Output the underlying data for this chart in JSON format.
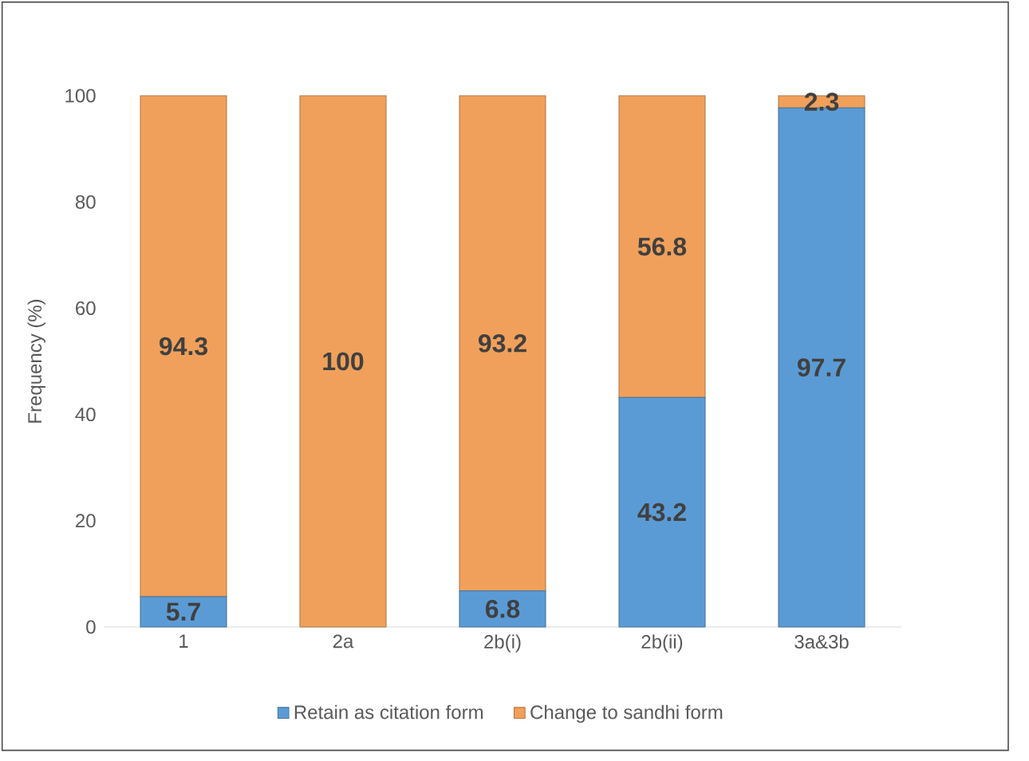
{
  "chart_data": {
    "type": "bar",
    "stacked": true,
    "ylabel": "Frequency (%)",
    "categories": [
      "1",
      "2a",
      "2b(i)",
      "2b(ii)",
      "3a&3b"
    ],
    "series": [
      {
        "name": "Retain as citation form",
        "color": "#5b9bd5",
        "values": [
          5.7,
          0,
          6.8,
          43.2,
          97.7
        ],
        "value_labels": [
          "5.7",
          null,
          "6.8",
          "43.2",
          "97.7"
        ]
      },
      {
        "name": "Change to sandhi form",
        "color": "#f0a05a",
        "values": [
          94.3,
          100,
          93.2,
          56.8,
          2.3
        ],
        "value_labels": [
          "94.3",
          "100",
          "93.2",
          "56.8",
          "2.3"
        ]
      }
    ],
    "ylim": [
      0,
      100
    ],
    "yticks": [
      0,
      20,
      40,
      60,
      80,
      100
    ],
    "legend": "bottom"
  }
}
